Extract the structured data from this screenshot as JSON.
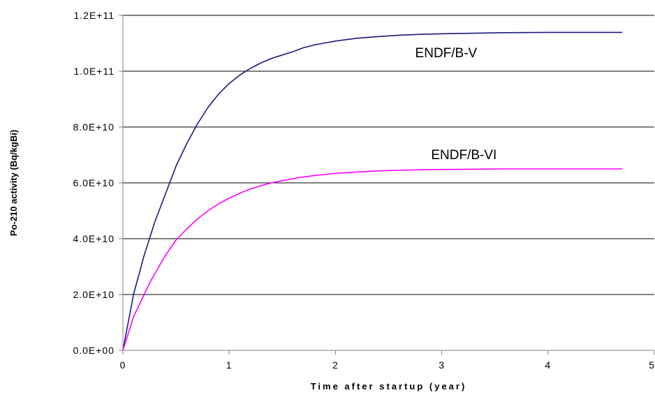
{
  "chart_data": {
    "type": "line",
    "title": "",
    "xlabel": "Time after startup (year)",
    "ylabel": "Po-210 activity (Bq/kgBi)",
    "xlim": [
      0,
      5
    ],
    "ylim": [
      0,
      120000000000
    ],
    "x_ticks": [
      0,
      1,
      2,
      3,
      4,
      5
    ],
    "x_tick_labels": [
      "0",
      "1",
      "2",
      "3",
      "4",
      "5"
    ],
    "y_ticks": [
      0,
      20000000000,
      40000000000,
      60000000000,
      80000000000,
      100000000000,
      120000000000
    ],
    "y_tick_labels": [
      "0.0E+00",
      "2.0E+10",
      "4.0E+10",
      "6.0E+10",
      "8.0E+10",
      "1.0E+11",
      "1.2E+11"
    ],
    "grid": "horizontal",
    "legend": "none",
    "series": [
      {
        "name": "ENDF/B-V",
        "color": "#1a1a80",
        "x": [
          0,
          0.05,
          0.1,
          0.15,
          0.2,
          0.25,
          0.3,
          0.4,
          0.5,
          0.6,
          0.7,
          0.8,
          0.9,
          1.0,
          1.1,
          1.2,
          1.3,
          1.4,
          1.5,
          1.6,
          1.7,
          1.8,
          1.9,
          2.0,
          2.2,
          2.4,
          2.6,
          2.8,
          3.0,
          3.3,
          3.6,
          4.0,
          4.4,
          4.7
        ],
        "values": [
          0,
          10000000000,
          20000000000,
          27000000000,
          34000000000,
          40000000000,
          46000000000,
          56000000000,
          66000000000,
          74000000000,
          81000000000,
          87000000000,
          91800000000,
          95600000000,
          98600000000,
          101000000000,
          103000000000,
          104600000000,
          105800000000,
          107000000000,
          108400000000,
          109400000000,
          110100000000,
          110800000000,
          111800000000,
          112400000000,
          112900000000,
          113200000000,
          113400000000,
          113600000000,
          113800000000,
          113900000000,
          113900000000,
          113900000000
        ],
        "label_position": [
          2.75,
          105000000000
        ]
      },
      {
        "name": "ENDF/B-VI",
        "color": "#ff00ff",
        "x": [
          0,
          0.05,
          0.1,
          0.15,
          0.2,
          0.25,
          0.3,
          0.4,
          0.5,
          0.6,
          0.7,
          0.8,
          0.9,
          1.0,
          1.1,
          1.2,
          1.3,
          1.4,
          1.5,
          1.6,
          1.7,
          1.8,
          1.9,
          2.0,
          2.2,
          2.4,
          2.6,
          2.8,
          3.0,
          3.3,
          3.6,
          4.0,
          4.4,
          4.7
        ],
        "values": [
          0,
          6000000000,
          12000000000,
          16000000000,
          20000000000,
          24000000000,
          27500000000,
          34000000000,
          39500000000,
          43500000000,
          47000000000,
          50000000000,
          52500000000,
          54500000000,
          56300000000,
          57800000000,
          59000000000,
          60000000000,
          60800000000,
          61500000000,
          62100000000,
          62600000000,
          63000000000,
          63400000000,
          63900000000,
          64300000000,
          64500000000,
          64700000000,
          64800000000,
          64900000000,
          65000000000,
          65000000000,
          65000000000,
          65000000000
        ],
        "label_position": [
          2.9,
          68500000000
        ]
      }
    ]
  }
}
